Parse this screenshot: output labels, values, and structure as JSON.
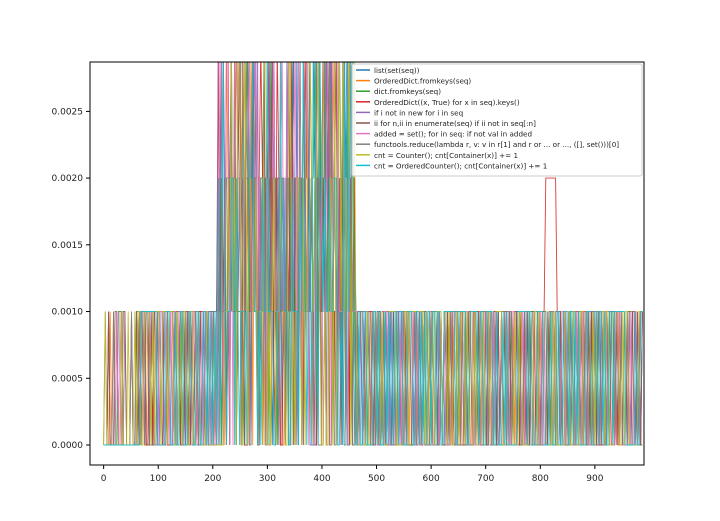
{
  "chart_data": {
    "type": "line",
    "title": "",
    "xlabel": "",
    "ylabel": "",
    "xlim": [
      -25,
      990
    ],
    "ylim": [
      -0.00015,
      0.00287
    ],
    "xticks": [
      0,
      100,
      200,
      300,
      400,
      500,
      600,
      700,
      800,
      900
    ],
    "xtick_labels": [
      "0",
      "100",
      "200",
      "300",
      "400",
      "500",
      "600",
      "700",
      "800",
      "900"
    ],
    "yticks": [
      0.0,
      0.0005,
      0.001,
      0.0015,
      0.002,
      0.0025
    ],
    "ytick_labels": [
      "0.0000",
      "0.0005",
      "0.0010",
      "0.0015",
      "0.0020",
      "0.0025"
    ],
    "grid": false,
    "legend_position": "upper-right",
    "series": [
      {
        "name": "list(set(seq))",
        "color": "#1f77b4"
      },
      {
        "name": "OrderedDict.fromkeys(seq)",
        "color": "#ff7f0e"
      },
      {
        "name": "dict.fromkeys(seq)",
        "color": "#2ca02c"
      },
      {
        "name": "OrderedDict((x, True) for x in seq).keys()",
        "color": "#d62728"
      },
      {
        "name": "if i not in new for i in seq",
        "color": "#9467bd"
      },
      {
        "name": "ii for n,ii in enumerate(seq) if ii not in seq[:n]",
        "color": "#8c564b"
      },
      {
        "name": "added = set(); for in seq: if not val in added",
        "color": "#e377c2"
      },
      {
        "name": "functools.reduce(lambda r, v: v in r[1] and r or ... or ..., ([], set()))[0]",
        "color": "#7f7f7f"
      },
      {
        "name": "cnt = Counter(); cnt[Container(x)] += 1",
        "color": "#bcbd22"
      },
      {
        "name": "cnt = OrderedCounter(); cnt[Container(x)] += 1",
        "color": "#17becf"
      }
    ]
  }
}
